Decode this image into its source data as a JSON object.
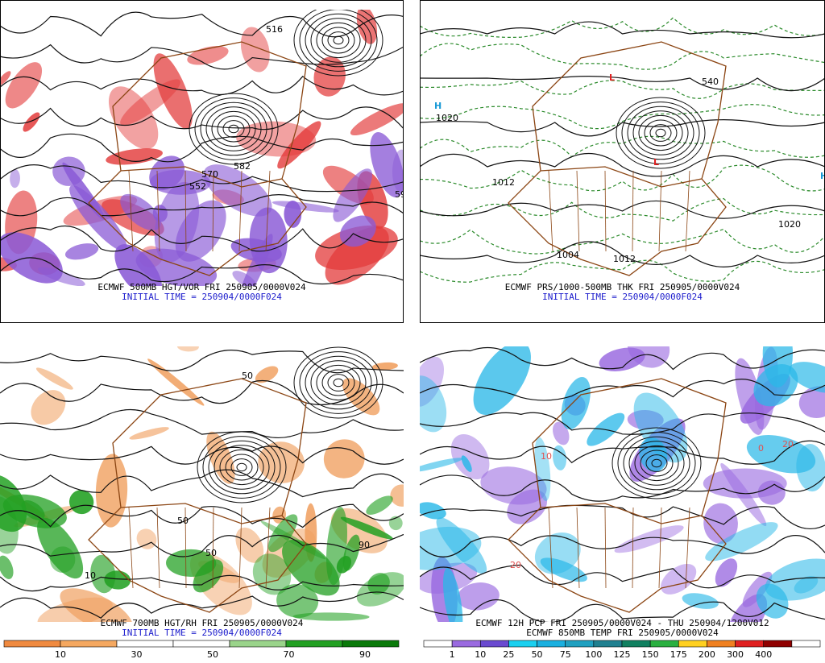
{
  "panels": [
    {
      "caption": "ECMWF 500MB HGT/VOR FRI 250905/0000V024",
      "initial_time": "INITIAL TIME = 250904/0000F024",
      "labels": [
        "516",
        "570",
        "582",
        "552",
        "59"
      ]
    },
    {
      "caption": "ECMWF PRS/1000-500MB THK FRI 250905/0000V024",
      "initial_time": "INITIAL TIME = 250904/0000F024",
      "labels": [
        "H",
        "1020",
        "1012",
        "L",
        "1004",
        "1012",
        "1020",
        "H",
        "L",
        "540"
      ]
    },
    {
      "caption": "ECMWF 700MB HGT/RH FRI 250905/0000V024",
      "initial_time": "INITIAL TIME = 250904/0000F024",
      "labels": [
        "50",
        "10",
        "50",
        "50",
        "90"
      ],
      "colorbar": [
        10,
        30,
        50,
        70,
        90
      ]
    },
    {
      "caption": "ECMWF 12H PCP FRI 250905/0000V024 - THU 250904/1200V012",
      "initial_time": "ECMWF 850MB TEMP FRI 250905/0000V024",
      "labels": [
        "20",
        "10",
        "0",
        "20"
      ],
      "colorbar": [
        1,
        10,
        25,
        50,
        75,
        100,
        125,
        150,
        175,
        200,
        300,
        400
      ]
    }
  ]
}
